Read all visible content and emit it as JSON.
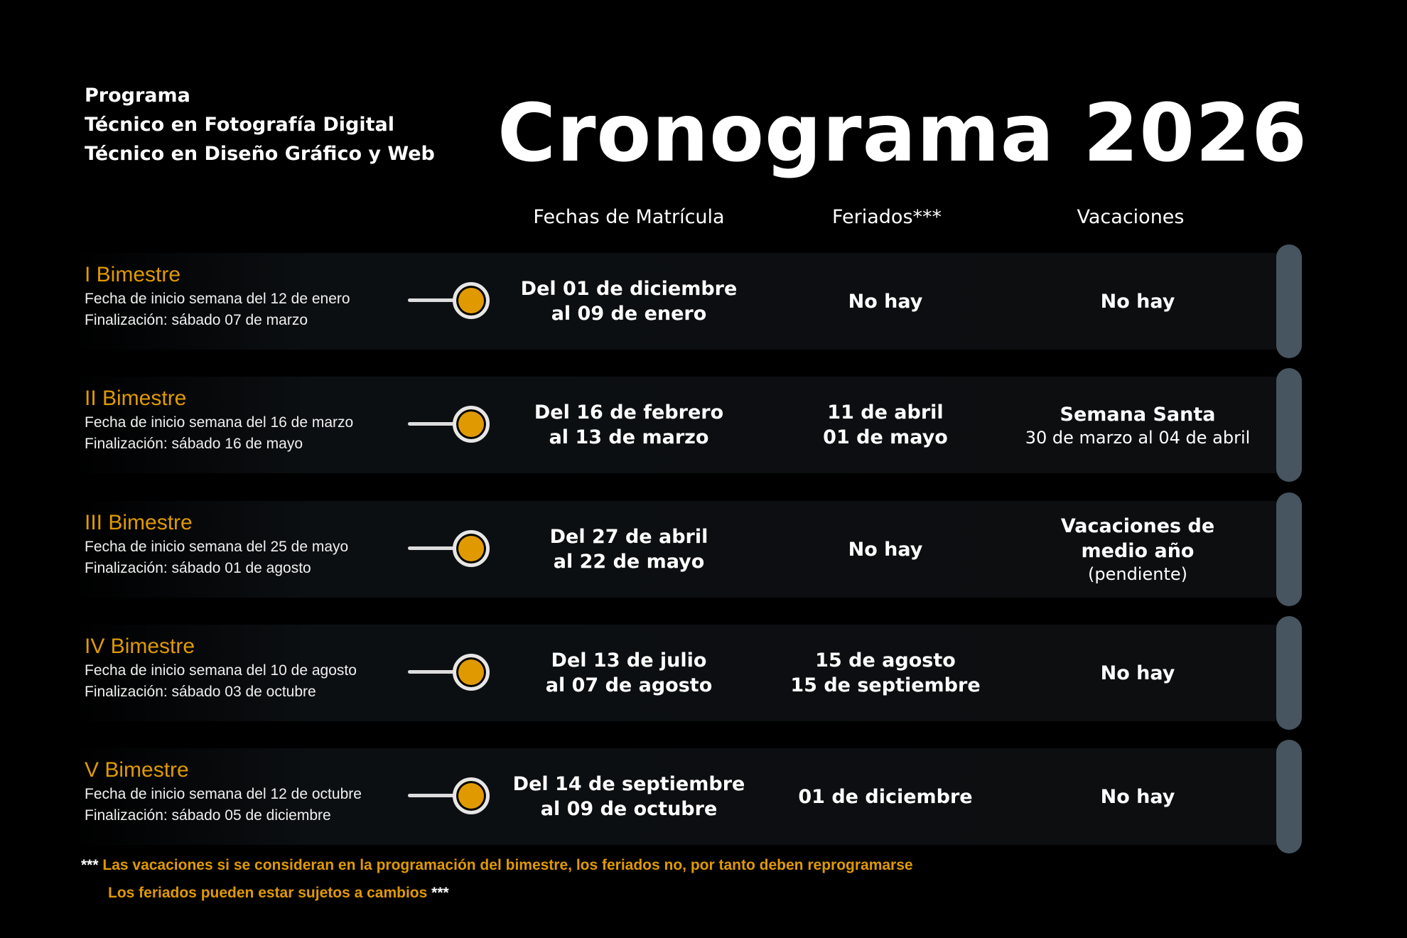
{
  "header": {
    "program_lines": [
      "Programa",
      "Técnico en Fotografía Digital",
      "Técnico en Diseño Gráfico y Web"
    ],
    "title": "Cronograma 2026"
  },
  "columns": [
    "Fechas de Matrícula",
    "Feriados***",
    "Vacaciones"
  ],
  "colors": {
    "accent": "#e09a00",
    "pill": "#46555f",
    "background": "#000000"
  },
  "rows": [
    {
      "name": "I Bimestre",
      "start": "Fecha de inicio semana del 12 de enero",
      "end": "Finalización: sábado 07 de marzo",
      "matricula": [
        "Del 01 de diciembre",
        "al 09 de enero"
      ],
      "feriados": [
        "No hay"
      ],
      "vacaciones": [
        "No hay"
      ],
      "vacaciones_note": ""
    },
    {
      "name": "II Bimestre",
      "start": "Fecha de inicio semana del 16 de marzo",
      "end": "Finalización: sábado 16 de mayo",
      "matricula": [
        "Del 16 de febrero",
        "al 13 de marzo"
      ],
      "feriados": [
        "11 de abril",
        "01 de mayo"
      ],
      "vacaciones": [
        "Semana Santa"
      ],
      "vacaciones_note": "30 de marzo al 04 de abril"
    },
    {
      "name": "III Bimestre",
      "start": "Fecha de inicio semana del 25 de mayo",
      "end": "Finalización: sábado 01 de agosto",
      "matricula": [
        "Del 27 de abril",
        "al 22 de mayo"
      ],
      "feriados": [
        "No hay"
      ],
      "vacaciones": [
        "Vacaciones de",
        "medio año"
      ],
      "vacaciones_note": "(pendiente)"
    },
    {
      "name": "IV Bimestre",
      "start": "Fecha de inicio semana del 10 de agosto",
      "end": "Finalización: sábado 03 de octubre",
      "matricula": [
        "Del 13 de julio",
        "al 07 de agosto"
      ],
      "feriados": [
        "15 de agosto",
        "15 de septiembre"
      ],
      "vacaciones": [
        "No hay"
      ],
      "vacaciones_note": ""
    },
    {
      "name": "V Bimestre",
      "start": "Fecha de inicio semana del 12 de octubre",
      "end": "Finalización: sábado 05 de diciembre",
      "matricula": [
        "Del 14 de septiembre",
        "al 09 de octubre"
      ],
      "feriados": [
        "01 de diciembre"
      ],
      "vacaciones": [
        "No hay"
      ],
      "vacaciones_note": ""
    }
  ],
  "footnotes": {
    "line1_mark": "***",
    "line1": "Las vacaciones si se consideran en la programación del bimestre, los feriados no, por tanto deben reprogramarse",
    "line2": "Los feriados pueden estar sujetos a cambios",
    "line2_mark": "***"
  }
}
